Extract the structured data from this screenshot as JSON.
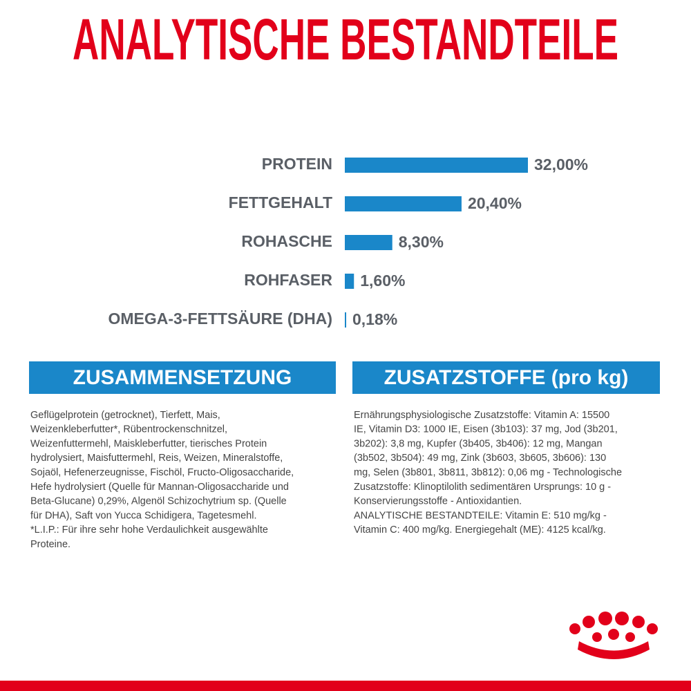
{
  "chart_data": {
    "type": "bar",
    "orientation": "horizontal",
    "title": "ANALYTISCHE BESTANDTEILE",
    "categories": [
      "PROTEIN",
      "FETTGEHALT",
      "ROHASCHE",
      "ROHFASER",
      "OMEGA-3-FETTSÄURE (DHA)"
    ],
    "values": [
      32,
      20.4,
      8.3,
      1.6,
      0.18
    ],
    "value_labels": [
      "32,00%",
      "20,40%",
      "8,30%",
      "1,60%",
      "0,18%"
    ],
    "color": "#1a87c9"
  },
  "sections": [
    {
      "heading": "ZUSAMMENSETZUNG",
      "lines": [
        "Geflügelprotein (getrocknet), Tierfett, Mais,",
        "Weizenkleberfutter*, Rübentrockenschnitzel,",
        "Weizenfuttermehl, Maiskleberfutter, tierisches Protein",
        "hydrolysiert, Maisfuttermehl, Reis, Weizen, Mineralstoffe,",
        "Sojaöl, Hefenerzeugnisse, Fischöl, Fructo-Oligosaccharide,",
        "Hefe hydrolysiert (Quelle für Mannan-Oligosaccharide und",
        "Beta-Glucane) 0,29%, Algenöl Schizochytrium sp. (Quelle",
        "für DHA), Saft von Yucca Schidigera, Tagetesmehl.",
        "*L.I.P.: Für ihre sehr hohe Verdaulichkeit ausgewählte",
        "Proteine."
      ]
    },
    {
      "heading": "ZUSATZSTOFFE (pro kg)",
      "lines": [
        "Ernährungsphysiologische Zusatzstoffe: Vitamin A: 15500",
        "IE, Vitamin D3: 1000 IE, Eisen (3b103): 37 mg, Jod (3b201,",
        "3b202): 3,8 mg, Kupfer (3b405, 3b406): 12 mg, Mangan",
        "(3b502, 3b504): 49 mg, Zink (3b603, 3b605, 3b606): 130",
        "mg, Selen (3b801, 3b811, 3b812): 0,06 mg - Technologische",
        "Zusatzstoffe: Klinoptilolith sedimentären Ursprungs: 10 g -",
        "Konservierungsstoffe - Antioxidantien.",
        "ANALYTISCHE BESTANDTEILE: Vitamin E: 510 mg/kg -",
        "Vitamin C: 400 mg/kg. Energiegehalt (ME): 4125 kcal/kg."
      ]
    }
  ]
}
